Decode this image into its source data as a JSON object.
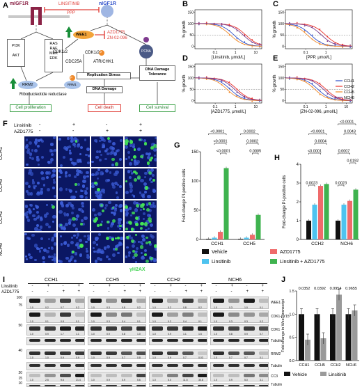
{
  "panelA": {
    "letter": "A",
    "migf1r": "mIGF1R",
    "nigf1r": "nIGF1R",
    "inhibitor1": "LINSITINIB",
    "inhibitor1b": "PPP",
    "inhibitor2": "AZD1775",
    "inhibitor2b": "ZN-02-096",
    "nodes": {
      "pi3k": "PI3K",
      "akt": "AKT",
      "ras": "RAS",
      "raf": "RAF",
      "mek": "MEK",
      "erk": "ERK",
      "rrm2": "RRM2",
      "wee1": "WEE1",
      "pcna": "PCNA",
      "cdk12a": "CDK1/2",
      "cdk12b": "CDK1/2",
      "cdc25a": "CDC25A",
      "atr": "ATR/CHK1",
      "rep": "Replication Stress",
      "dnad": "DNA Damage",
      "tol1": "DNA Damage",
      "tol2": "Tolerance",
      "rnr": "Ribonucleotide reductase",
      "rrm1": "RRM1",
      "rrm2b": "RRM2",
      "p": "P"
    },
    "outcomes": {
      "prolif": "Cell proliferation",
      "death": "Cell death",
      "survival": "Cell survival"
    }
  },
  "curves": {
    "legend": [
      "CCH1",
      "CCH2",
      "CCH5",
      "NCH6"
    ],
    "legend_colors": [
      "#2e4fc9",
      "#e8322c",
      "#f08a2a",
      "#7a3b8c"
    ],
    "ylabel": "% growth",
    "yticks": [
      "150",
      "100",
      "50",
      "0"
    ],
    "panels": [
      {
        "letter": "B",
        "xlabel": "[Linsitinib, μmol/L]",
        "xticks": [
          "0.1",
          "1",
          "10"
        ],
        "ic50": [
          0.85,
          3.2,
          0.55,
          2.4
        ]
      },
      {
        "letter": "C",
        "xlabel": "[PPP, μmol/L]",
        "xticks": [
          "0.1",
          "1"
        ],
        "ic50": [
          0.18,
          0.95,
          0.12,
          0.6
        ]
      },
      {
        "letter": "D",
        "xlabel": "[AZD1775, μmol/L]",
        "xticks": [
          "0.1",
          "1",
          "10"
        ],
        "ic50": [
          0.55,
          1.2,
          0.38,
          0.9
        ]
      },
      {
        "letter": "E",
        "xlabel": "[ZN-02-096, μmol/L]",
        "xticks": [
          "0.1",
          "1",
          "10"
        ],
        "ic50": [
          0.4,
          1.0,
          0.28,
          0.75
        ]
      }
    ]
  },
  "panelF": {
    "letter": "F",
    "row1": "Linsitinib",
    "row2": "AZD1775",
    "signs1": [
      "-",
      "+",
      "-",
      "+"
    ],
    "signs2": [
      "-",
      "-",
      "+",
      "+"
    ],
    "rows": [
      "CCH1",
      "CCH5",
      "CCH2",
      "NCH6"
    ],
    "stain": "γH2AX"
  },
  "panelG": {
    "letter": "G",
    "ylabel": "Fold-change PI-positive cells",
    "yticks": [
      "150",
      "100",
      "50",
      "0"
    ],
    "ymax": 150,
    "groups": [
      "CCH1",
      "CCH5"
    ],
    "values": [
      [
        1,
        3,
        13,
        122
      ],
      [
        1,
        3,
        8,
        42
      ]
    ],
    "pvals": [
      "<0.0001",
      "<0.0001",
      "<0.0001",
      "0.0002",
      "0.0002",
      "0.0005"
    ]
  },
  "panelH": {
    "letter": "H",
    "ylabel": "Fold-change PI-positive cells",
    "yticks": [
      "4",
      "3",
      "2",
      "1",
      "0"
    ],
    "ymax": 4,
    "groups": [
      "CCH2",
      "NCH6"
    ],
    "values": [
      [
        1.0,
        1.85,
        2.85,
        2.95
      ],
      [
        1.0,
        1.85,
        2.05,
        2.65
      ]
    ],
    "pvals": [
      "<0.0001",
      "0.0004",
      "<0.0001",
      "0.0023",
      "<0.0001",
      "0.0043",
      "0.0007",
      "0.0192",
      "0.0023"
    ]
  },
  "bar_colors": [
    "#111111",
    "#4ec3ef",
    "#ef6b6b",
    "#3fb34f"
  ],
  "legendGH": [
    "Vehicle",
    "AZD1775",
    "Linsitinib",
    "Linsitinib + AZD1775"
  ],
  "panelI": {
    "letter": "I",
    "row1": "Linsitinib",
    "row2": "AZD1775",
    "groups": [
      "CCH1",
      "CCH5",
      "CCH2",
      "NCH6"
    ],
    "signs1": [
      "-",
      "+",
      "-",
      "+"
    ],
    "signs2": [
      "-",
      "-",
      "+",
      "+"
    ],
    "mw": [
      "100",
      "75",
      "50",
      "40",
      "20",
      "15",
      "10"
    ],
    "labels": [
      "WEE1",
      "CDK1-pY15",
      "CDK1",
      "Tubulin",
      "RRM2",
      "Tubulin",
      "CC3",
      "Tubulin"
    ],
    "quant": [
      [
        "1.0",
        "0.2",
        "0.7",
        "0.2",
        "1.0",
        "0.3",
        "0.8",
        "0.2",
        "1.0",
        "0.2",
        "0.8",
        "0.2",
        "1.0",
        "0.3",
        "1.0",
        "0.1"
      ],
      [
        "1.0",
        "0.1",
        "0.8",
        "0.1",
        "1.0",
        "0.3",
        "0.4",
        "0.1",
        "1.0",
        "0.2",
        "0.4",
        "0.1",
        "1.0",
        "0.3",
        "0.3",
        "0.2"
      ],
      [
        "1.0",
        "0.9",
        "1.7",
        "1.1",
        "1.0",
        "0.9",
        "0.8",
        "1.0",
        "1.0",
        "0.9",
        "1.1",
        "1.5",
        "1.0",
        "0.8",
        "0.9",
        "0.7"
      ],
      null,
      [
        "1.0",
        "1.0",
        "0.9",
        "0.9",
        "1.0",
        "0.9",
        "0.7",
        "0.8",
        "1.0",
        "0.9",
        "0.7",
        "0.03",
        "1.0",
        "0.7",
        "0.7",
        "0.1"
      ],
      null,
      [
        "1.0",
        "2.5",
        "9.6",
        "21.4",
        "1.0",
        "0.9",
        "0.9",
        "5.6",
        "1.0",
        "5.0",
        "11.5",
        "30.8",
        "1.0",
        "0.9",
        "5.0",
        "3.1"
      ],
      null
    ]
  },
  "panelJ": {
    "letter": "J",
    "ylabel": "Fold change in Wee1 transcript",
    "yticks": [
      "1.5",
      "1.0",
      "0.5",
      "0.0"
    ],
    "ymax": 1.5,
    "groups": [
      "CCH1",
      "CCH5",
      "CCH2",
      "NCH6"
    ],
    "values": [
      [
        1.0,
        0.45
      ],
      [
        1.0,
        0.48
      ],
      [
        1.0,
        1.42
      ],
      [
        1.0,
        1.08
      ]
    ],
    "pvals": [
      "0.0352",
      "0.0392",
      "0.0954",
      "0.9655"
    ],
    "legend": [
      "Vehicle",
      "Linsitinib"
    ],
    "colors": [
      "#111111",
      "#9a9a9a"
    ]
  }
}
